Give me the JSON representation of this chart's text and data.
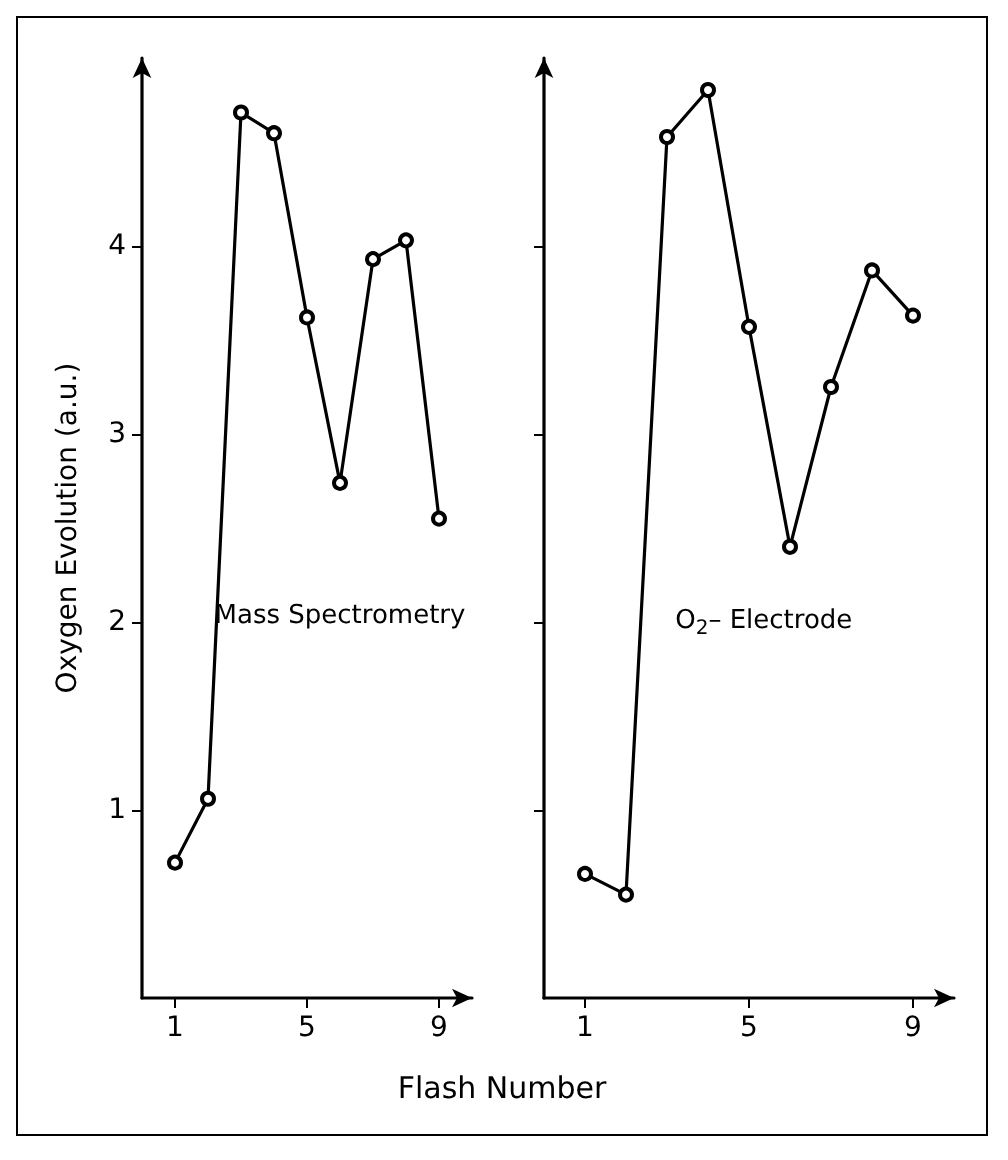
{
  "chart_data": [
    {
      "type": "line",
      "ylabel": "Oxygen Evolution (a.u.)",
      "xlabel": "Flash Number",
      "x": [
        1,
        2,
        3,
        4,
        5,
        6,
        7,
        8,
        9
      ],
      "xlim": [
        0,
        10
      ],
      "xticks": [
        1,
        5,
        9
      ],
      "ylim": [
        0,
        5
      ],
      "yticks": [
        1,
        2,
        3,
        4
      ],
      "marker": "circle",
      "line_style": "solid",
      "series": [
        {
          "color": "#000000",
          "values": [
            0.72,
            1.06,
            4.71,
            4.6,
            3.62,
            2.74,
            3.93,
            4.03,
            2.55
          ]
        }
      ],
      "annotations": [
        "Mass Spectrometry"
      ]
    },
    {
      "type": "line",
      "x": [
        1,
        2,
        3,
        4,
        5,
        6,
        7,
        8,
        9
      ],
      "xlim": [
        0,
        10
      ],
      "xticks": [
        1,
        5,
        9
      ],
      "ylim": [
        0,
        5
      ],
      "yticks": [
        1,
        2,
        3,
        4
      ],
      "tick_labels": "x",
      "marker": "circle",
      "line_style": "solid",
      "series": [
        {
          "color": "#000000",
          "values": [
            0.66,
            0.55,
            4.58,
            4.83,
            3.57,
            2.4,
            3.25,
            3.87,
            3.63
          ]
        }
      ],
      "annotations": [
        "O$_{2}$– Electrode"
      ]
    }
  ]
}
